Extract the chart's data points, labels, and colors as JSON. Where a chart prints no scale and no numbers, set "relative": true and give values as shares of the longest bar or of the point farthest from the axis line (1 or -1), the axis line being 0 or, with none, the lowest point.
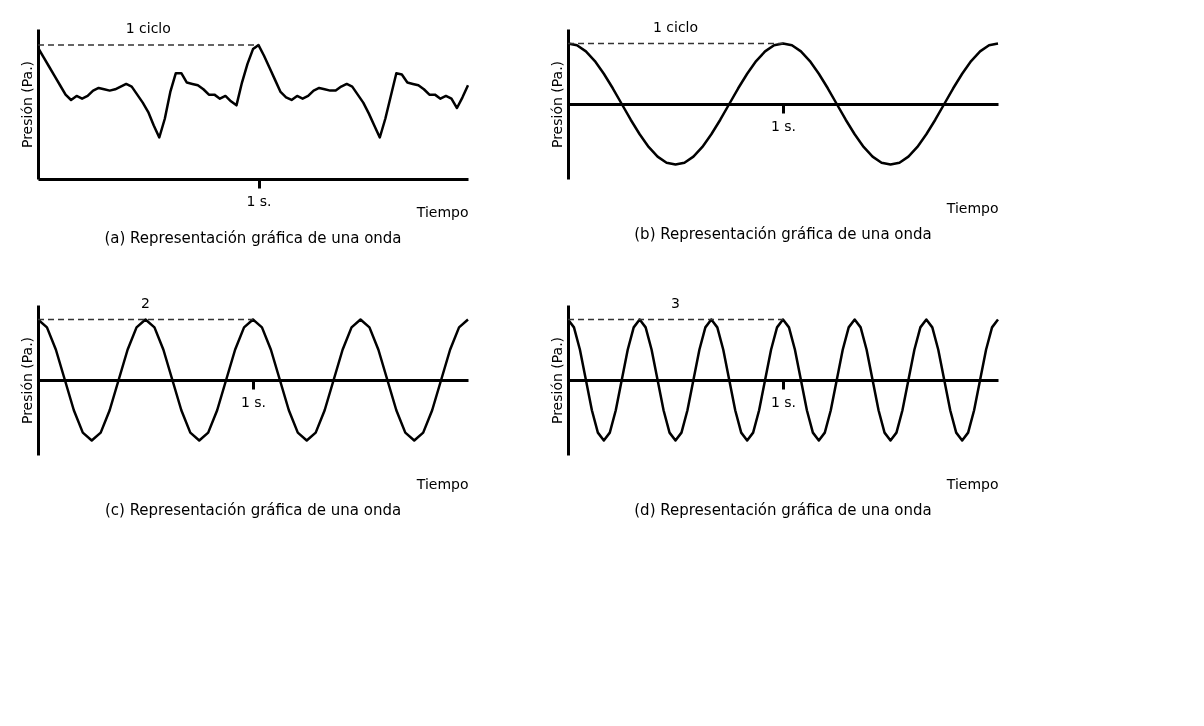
{
  "chart_data": [
    {
      "type": "line",
      "relative": true,
      "title": "(a) Representación gráfica de una onda",
      "xlabel": "Tiempo",
      "ylabel": "Presión (Pa.)",
      "grid": false,
      "line_style": "solid",
      "annotations": [
        "1 ciclo",
        "1 s."
      ],
      "categories": [
        null,
        null,
        null,
        null,
        null,
        null,
        null,
        null,
        null,
        null,
        null,
        null,
        null,
        null,
        null,
        null,
        null,
        null,
        null,
        null,
        null,
        null,
        null,
        null,
        null,
        null,
        null,
        null,
        null,
        null,
        null,
        null,
        null,
        null,
        null,
        null,
        null,
        null,
        null,
        null,
        null,
        null,
        null,
        null,
        null,
        null,
        null,
        null,
        null,
        null,
        null,
        null,
        null,
        null,
        null,
        null,
        null,
        null,
        null,
        null,
        null,
        null,
        null,
        null,
        null,
        null,
        null,
        null,
        null,
        null,
        null,
        null,
        null,
        null,
        null,
        null,
        null,
        null,
        null
      ],
      "series": [
        {
          "color": "#000000",
          "values": [
            0.98,
            0.91,
            0.84,
            0.77,
            0.7,
            0.63,
            0.59,
            0.62,
            0.6,
            0.62,
            0.66,
            0.68,
            0.67,
            0.66,
            0.67,
            0.69,
            0.71,
            0.69,
            0.63,
            0.57,
            0.5,
            0.4,
            0.31,
            0.45,
            0.65,
            0.79,
            0.79,
            0.72,
            0.71,
            0.7,
            0.67,
            0.63,
            0.63,
            0.6,
            0.62,
            0.58,
            0.55,
            0.72,
            0.86,
            0.97,
            1,
            0.92,
            0.83,
            0.74,
            0.65,
            0.61,
            0.59,
            0.62,
            0.6,
            0.62,
            0.66,
            0.68,
            0.67,
            0.66,
            0.66,
            0.69,
            0.71,
            0.69,
            0.63,
            0.57,
            0.49,
            0.4,
            0.31,
            0.45,
            0.62,
            0.79,
            0.78,
            0.72,
            0.71,
            0.7,
            0.67,
            0.63,
            0.63,
            0.6,
            0.62,
            0.6,
            0.53,
            0.61,
            0.7
          ]
        },
        {
          "color": "#333333",
          "line_style": "dashed",
          "values": [
            1,
            1,
            1,
            1,
            1,
            1,
            1,
            1,
            1,
            1,
            1,
            1,
            1,
            1,
            1,
            1,
            1,
            1,
            1,
            1,
            1,
            1,
            1,
            1,
            1,
            1,
            1,
            1,
            1,
            1,
            1,
            1,
            1,
            1,
            1,
            1,
            1,
            1,
            1,
            1,
            1,
            null,
            null,
            null,
            null,
            null,
            null,
            null,
            null,
            null,
            null,
            null,
            null,
            null,
            null,
            null,
            null,
            null,
            null,
            null,
            null,
            null,
            null,
            null,
            null,
            null,
            null,
            null,
            null,
            null,
            null,
            null,
            null,
            null,
            null,
            null,
            null,
            null,
            null
          ]
        }
      ]
    },
    {
      "type": "line",
      "relative": true,
      "title": "(b) Representación gráfica de una onda",
      "xlabel": "Tiempo",
      "ylabel": "Presión (Pa.)",
      "grid": false,
      "line_style": "solid",
      "annotations": [
        "1 ciclo",
        "1 s."
      ],
      "categories": [
        null,
        null,
        null,
        null,
        null,
        null,
        null,
        null,
        null,
        null,
        null,
        null,
        null,
        null,
        null,
        null,
        null,
        null,
        null,
        null,
        null,
        null,
        null,
        null,
        null,
        null,
        null,
        null,
        null,
        null,
        null,
        null,
        null,
        null,
        null,
        null,
        null,
        null,
        null,
        null,
        null,
        null,
        null,
        null,
        null,
        null,
        null,
        null,
        null
      ],
      "series": [
        {
          "color": "#000000",
          "values": [
            1,
            0.97,
            0.87,
            0.71,
            0.5,
            0.26,
            0,
            -0.26,
            -0.5,
            -0.71,
            -0.87,
            -0.97,
            -1,
            -0.97,
            -0.87,
            -0.71,
            -0.5,
            -0.26,
            0,
            0.26,
            0.5,
            0.71,
            0.87,
            0.97,
            1,
            0.97,
            0.87,
            0.71,
            0.5,
            0.26,
            0,
            -0.26,
            -0.5,
            -0.71,
            -0.87,
            -0.97,
            -1,
            -0.97,
            -0.87,
            -0.71,
            -0.5,
            -0.26,
            0,
            0.26,
            0.5,
            0.71,
            0.87,
            0.97,
            1
          ]
        },
        {
          "color": "#333333",
          "line_style": "dashed",
          "values": [
            1,
            1,
            1,
            1,
            1,
            1,
            1,
            1,
            1,
            1,
            1,
            1,
            1,
            1,
            1,
            1,
            1,
            1,
            1,
            1,
            1,
            1,
            1,
            1,
            1,
            null,
            null,
            null,
            null,
            null,
            null,
            null,
            null,
            null,
            null,
            null,
            null,
            null,
            null,
            null,
            null,
            null,
            null,
            null,
            null,
            null,
            null,
            null,
            null
          ]
        }
      ]
    },
    {
      "type": "line",
      "relative": true,
      "title": "(c) Representación gráfica de una onda",
      "xlabel": "Tiempo",
      "ylabel": "Presión (Pa.)",
      "grid": false,
      "line_style": "solid",
      "annotations": [
        "2",
        "1 s."
      ],
      "categories": [
        null,
        null,
        null,
        null,
        null,
        null,
        null,
        null,
        null,
        null,
        null,
        null,
        null,
        null,
        null,
        null,
        null,
        null,
        null,
        null,
        null,
        null,
        null,
        null,
        null,
        null,
        null,
        null,
        null,
        null,
        null,
        null,
        null,
        null,
        null,
        null,
        null,
        null,
        null,
        null,
        null,
        null,
        null,
        null,
        null,
        null,
        null,
        null,
        null
      ],
      "series": [
        {
          "color": "#000000",
          "values": [
            1,
            0.87,
            0.5,
            0,
            -0.5,
            -0.87,
            -1,
            -0.87,
            -0.5,
            0,
            0.5,
            0.87,
            1,
            0.87,
            0.5,
            0,
            -0.5,
            -0.87,
            -1,
            -0.87,
            -0.5,
            0,
            0.5,
            0.87,
            1,
            0.87,
            0.5,
            0,
            -0.5,
            -0.87,
            -1,
            -0.87,
            -0.5,
            0,
            0.5,
            0.87,
            1,
            0.87,
            0.5,
            0,
            -0.5,
            -0.87,
            -1,
            -0.87,
            -0.5,
            0,
            0.5,
            0.87,
            1
          ]
        },
        {
          "color": "#333333",
          "line_style": "dashed",
          "values": [
            1,
            1,
            1,
            1,
            1,
            1,
            1,
            1,
            1,
            1,
            1,
            1,
            1,
            1,
            1,
            1,
            1,
            1,
            1,
            1,
            1,
            1,
            1,
            1,
            1,
            null,
            null,
            null,
            null,
            null,
            null,
            null,
            null,
            null,
            null,
            null,
            null,
            null,
            null,
            null,
            null,
            null,
            null,
            null,
            null,
            null,
            null,
            null,
            null
          ]
        }
      ]
    },
    {
      "type": "line",
      "relative": true,
      "title": "(d) Representación gráfica de una onda",
      "xlabel": "Tiempo",
      "ylabel": "Presión (Pa.)",
      "grid": false,
      "line_style": "solid",
      "annotations": [
        "3",
        "1 s."
      ],
      "categories": [
        null,
        null,
        null,
        null,
        null,
        null,
        null,
        null,
        null,
        null,
        null,
        null,
        null,
        null,
        null,
        null,
        null,
        null,
        null,
        null,
        null,
        null,
        null,
        null,
        null,
        null,
        null,
        null,
        null,
        null,
        null,
        null,
        null,
        null,
        null,
        null,
        null,
        null,
        null,
        null,
        null,
        null,
        null,
        null,
        null,
        null,
        null,
        null,
        null,
        null,
        null,
        null,
        null,
        null,
        null,
        null,
        null,
        null,
        null,
        null,
        null,
        null,
        null,
        null,
        null,
        null,
        null,
        null,
        null,
        null,
        null,
        null,
        null
      ],
      "series": [
        {
          "color": "#000000",
          "values": [
            1,
            0.87,
            0.5,
            0,
            -0.5,
            -0.87,
            -1,
            -0.87,
            -0.5,
            0,
            0.5,
            0.87,
            1,
            0.87,
            0.5,
            0,
            -0.5,
            -0.87,
            -1,
            -0.87,
            -0.5,
            0,
            0.5,
            0.87,
            1,
            0.87,
            0.5,
            0,
            -0.5,
            -0.87,
            -1,
            -0.87,
            -0.5,
            0,
            0.5,
            0.87,
            1,
            0.87,
            0.5,
            0,
            -0.5,
            -0.87,
            -1,
            -0.87,
            -0.5,
            0,
            0.5,
            0.87,
            1,
            0.87,
            0.5,
            0,
            -0.5,
            -0.87,
            -1,
            -0.87,
            -0.5,
            0,
            0.5,
            0.87,
            1,
            0.87,
            0.5,
            0,
            -0.5,
            -0.87,
            -1,
            -0.87,
            -0.5,
            0,
            0.5,
            0.87,
            1
          ]
        },
        {
          "color": "#333333",
          "line_style": "dashed",
          "values": [
            1,
            1,
            1,
            1,
            1,
            1,
            1,
            1,
            1,
            1,
            1,
            1,
            1,
            1,
            1,
            1,
            1,
            1,
            1,
            1,
            1,
            1,
            1,
            1,
            1,
            1,
            1,
            1,
            1,
            1,
            1,
            1,
            1,
            1,
            1,
            1,
            1,
            null,
            null,
            null,
            null,
            null,
            null,
            null,
            null,
            null,
            null,
            null,
            null,
            null,
            null,
            null,
            null,
            null,
            null,
            null,
            null,
            null,
            null,
            null,
            null,
            null,
            null,
            null,
            null,
            null,
            null,
            null,
            null,
            null,
            null,
            null,
            null
          ]
        }
      ]
    }
  ]
}
